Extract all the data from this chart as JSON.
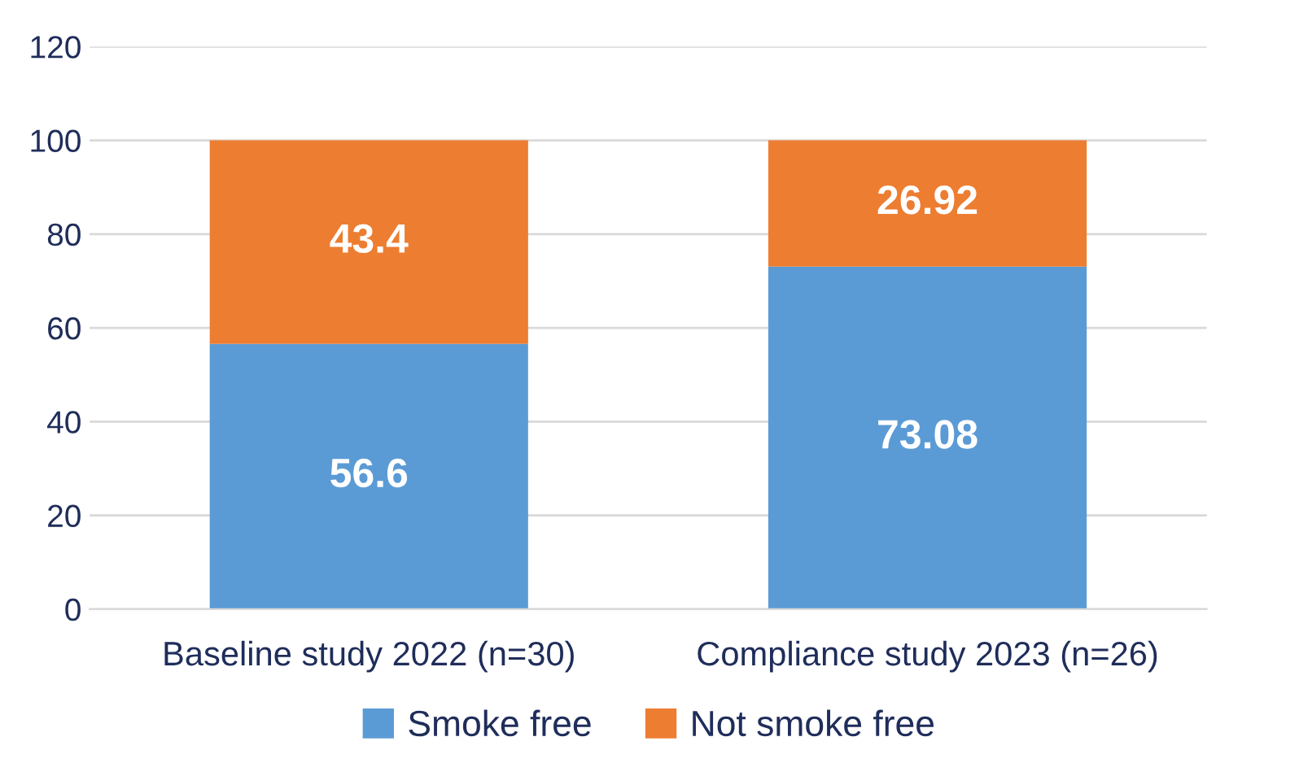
{
  "chart_data": {
    "type": "bar",
    "stacked": true,
    "categories": [
      "Baseline study 2022 (n=30)",
      "Compliance study 2023 (n=26)"
    ],
    "series": [
      {
        "name": "Smoke free",
        "color": "#5b9bd5",
        "values": [
          56.6,
          73.08
        ]
      },
      {
        "name": "Not smoke free",
        "color": "#ed7d31",
        "values": [
          43.4,
          26.92
        ]
      }
    ],
    "ylim": [
      0,
      120
    ],
    "yticks": [
      0,
      20,
      40,
      60,
      80,
      100,
      120
    ],
    "grid": "y",
    "legend": "bottom",
    "data_labels": true
  }
}
